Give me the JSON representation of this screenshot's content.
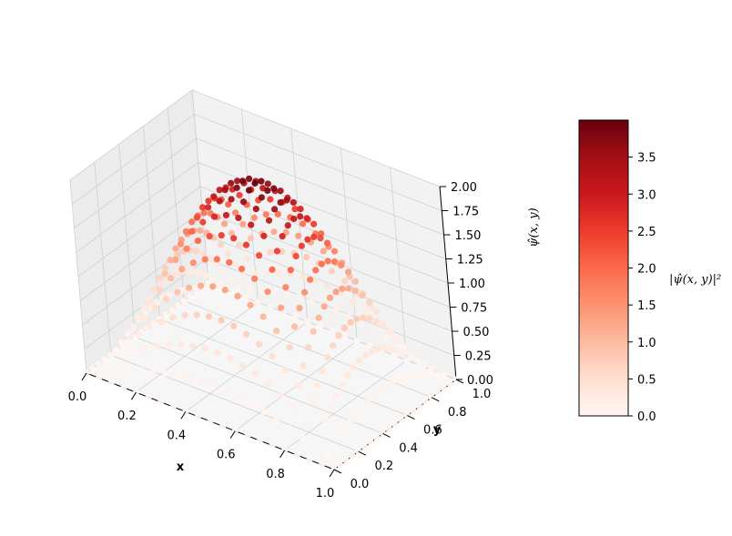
{
  "chart_data": {
    "type": "scatter3d",
    "function": "psi_hat(x,y) = 2*sin(pi*x)*sin(pi*y)",
    "color_value": "|psi_hat(x,y)|^2",
    "grid_points_per_axis": 21,
    "xlim": [
      0,
      1
    ],
    "ylim": [
      0,
      1
    ],
    "zlim": [
      0,
      2
    ],
    "x_ticks": [
      "0.0",
      "0.2",
      "0.4",
      "0.6",
      "0.8",
      "1.0"
    ],
    "y_ticks": [
      "0.0",
      "0.2",
      "0.4",
      "0.6",
      "0.8",
      "1.0"
    ],
    "z_ticks": [
      "0.00",
      "0.25",
      "0.50",
      "0.75",
      "1.00",
      "1.25",
      "1.50",
      "1.75",
      "2.00"
    ],
    "xlabel": "x",
    "ylabel": "y",
    "zlabel": "ψ̂(x, y)",
    "colormap": "Reds",
    "colormap_stops": [
      "#fff5f0",
      "#fee0d2",
      "#fcbba1",
      "#fc9272",
      "#fb6a4a",
      "#ef3b2c",
      "#cb181d",
      "#a50f15",
      "#67000d"
    ],
    "colorbar": {
      "label": "|ψ̂(x, y)|²",
      "range": [
        0,
        4
      ],
      "ticks": [
        "0.0",
        "0.5",
        "1.0",
        "1.5",
        "2.0",
        "2.5",
        "3.0",
        "3.5"
      ]
    },
    "pane_color": "#f2f2f2",
    "grid": true
  }
}
